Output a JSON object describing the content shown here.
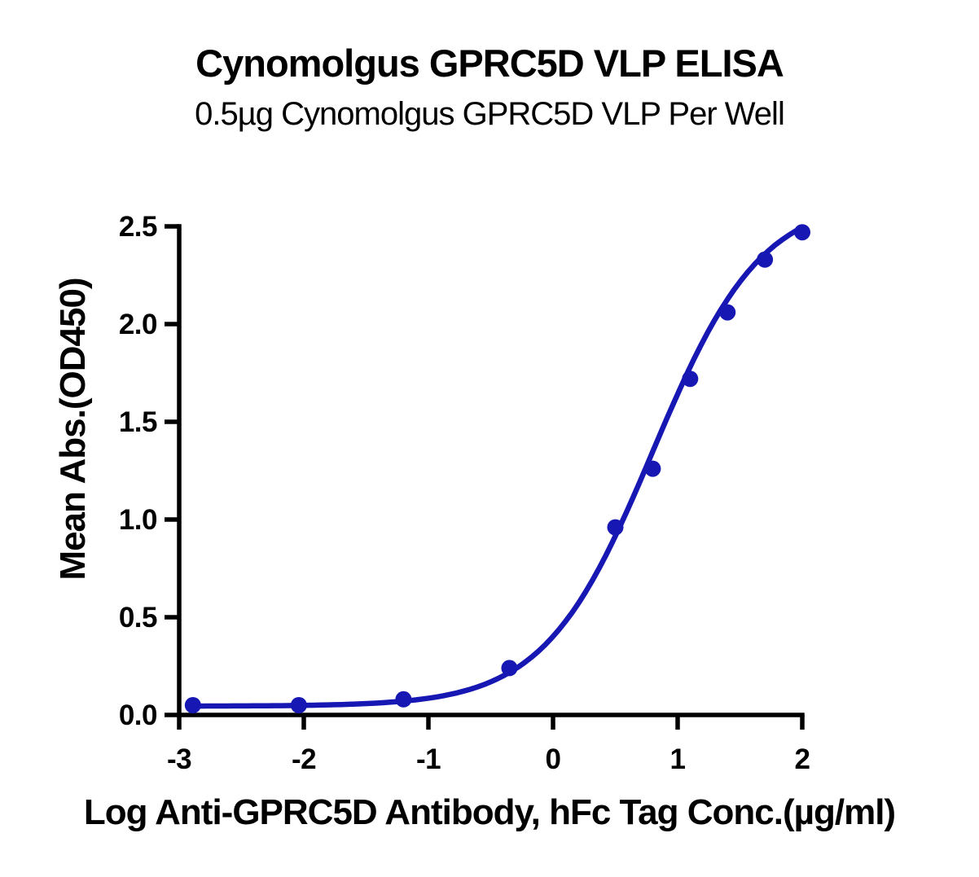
{
  "chart_data": {
    "type": "scatter",
    "title": "Cynomolgus GPRC5D VLP ELISA",
    "subtitle": "0.5µg Cynomolgus GPRC5D VLP Per Well",
    "xlabel": "Log Anti-GPRC5D Antibody, hFc Tag Conc.(µg/ml)",
    "ylabel": "Mean Abs.(OD450)",
    "x": [
      -2.89,
      -2.04,
      -1.2,
      -0.35,
      0.5,
      0.8,
      1.1,
      1.4,
      1.7,
      2.0
    ],
    "y": [
      0.05,
      0.05,
      0.08,
      0.24,
      0.96,
      1.26,
      1.72,
      2.06,
      2.33,
      2.47
    ],
    "x_ticks": [
      -3,
      -2,
      -1,
      0,
      1,
      2
    ],
    "x_tick_labels": [
      "-3",
      "-2",
      "-1",
      "0",
      "1",
      "2"
    ],
    "y_ticks": [
      0,
      0.5,
      1,
      1.5,
      2,
      2.5
    ],
    "y_tick_labels": [
      "0.0",
      "0.5",
      "1.0",
      "1.5",
      "2.0",
      "2.5"
    ],
    "xlim": [
      -3,
      2
    ],
    "ylim": [
      0,
      2.5
    ],
    "grid": false,
    "legend": null,
    "line_color": "#1717b4",
    "marker_color": "#1717b4",
    "axis_color": "#000000",
    "background_color": "#ffffff",
    "fit_curve": {
      "model": "4PL-sigmoid",
      "bottom": 0.045,
      "top": 2.65,
      "logec50": 0.8,
      "hillslope": 1.0
    }
  }
}
